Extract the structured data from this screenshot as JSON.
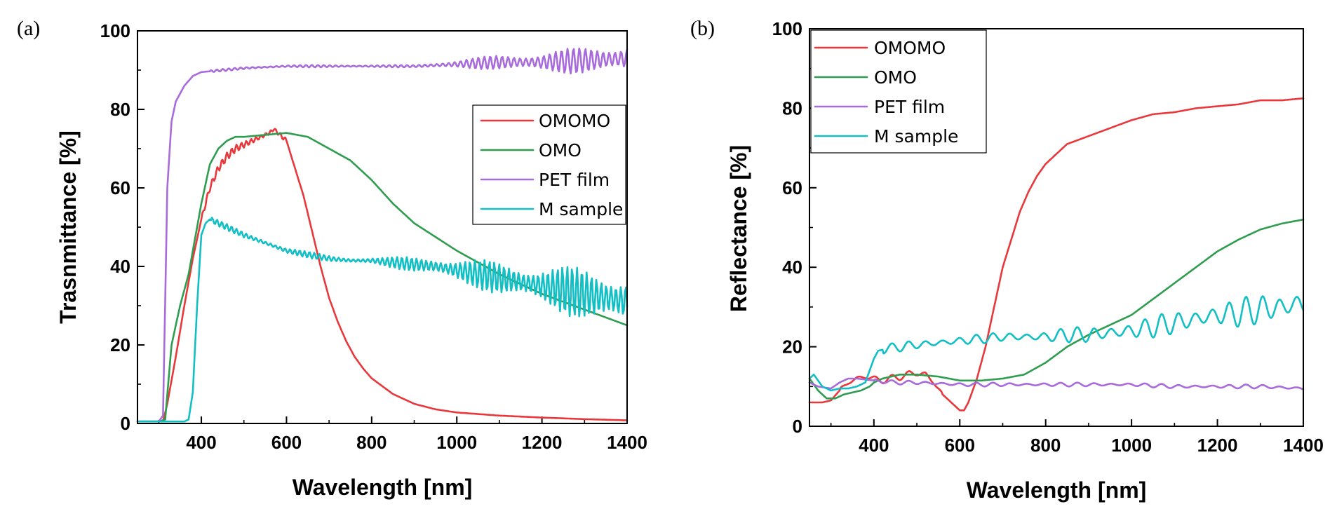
{
  "chart_data": [
    {
      "type": "line",
      "panel_label": "(a)",
      "xlabel": "Wavelength [nm]",
      "ylabel": "Trasnmittance [%]",
      "xlim": [
        250,
        1400
      ],
      "ylim": [
        0,
        100
      ],
      "xticks": [
        400,
        600,
        800,
        1000,
        1200,
        1400
      ],
      "yticks": [
        0,
        20,
        40,
        60,
        80,
        100
      ],
      "legend_position": "upper-right",
      "series": [
        {
          "name": "OMOMO",
          "color": "#e8383b",
          "x": [
            250,
            300,
            310,
            320,
            340,
            360,
            380,
            400,
            420,
            440,
            460,
            480,
            500,
            520,
            540,
            560,
            570,
            580,
            600,
            620,
            640,
            660,
            680,
            700,
            720,
            740,
            760,
            780,
            800,
            850,
            900,
            950,
            1000,
            1100,
            1200,
            1300,
            1400
          ],
          "y": [
            0.5,
            0.5,
            0.5,
            5,
            17,
            30,
            42,
            52,
            60,
            65,
            68,
            70,
            71,
            72,
            73,
            74,
            75,
            74,
            72,
            65,
            58,
            49,
            40,
            32,
            26,
            21,
            17,
            14,
            11.5,
            7.5,
            5,
            3.6,
            2.8,
            2,
            1.5,
            1.1,
            0.8
          ]
        },
        {
          "name": "OMO",
          "color": "#2e9d4f",
          "x": [
            250,
            300,
            315,
            330,
            350,
            370,
            390,
            400,
            420,
            440,
            460,
            480,
            500,
            550,
            600,
            650,
            700,
            750,
            800,
            850,
            900,
            950,
            1000,
            1050,
            1100,
            1150,
            1200,
            1250,
            1300,
            1350,
            1400
          ],
          "y": [
            0.5,
            0.5,
            1,
            20,
            30,
            38,
            50,
            56,
            66,
            70,
            72,
            73,
            73,
            73.5,
            74,
            73,
            70,
            67,
            62,
            56,
            51,
            47.5,
            44,
            41,
            38,
            35.5,
            33,
            31,
            29,
            27,
            25
          ]
        },
        {
          "name": "PET film",
          "color": "#a86bdc",
          "x": [
            250,
            300,
            310,
            320,
            330,
            340,
            360,
            380,
            400,
            450,
            500,
            600,
            700,
            800,
            900,
            1000,
            1100,
            1200,
            1300,
            1400
          ],
          "y": [
            0.5,
            0.5,
            2,
            60,
            77,
            82,
            86,
            88.5,
            89.5,
            90,
            90.5,
            91,
            91,
            91,
            91,
            91.5,
            92,
            92,
            92.5,
            93
          ]
        },
        {
          "name": "M sample",
          "color": "#12bfc4",
          "x": [
            250,
            360,
            370,
            380,
            390,
            400,
            410,
            420,
            440,
            460,
            500,
            550,
            600,
            650,
            700,
            750,
            800,
            850,
            900,
            950,
            1000,
            1100,
            1200,
            1300,
            1400
          ],
          "y": [
            0.5,
            0.5,
            1,
            8,
            30,
            48,
            51,
            52,
            51,
            50,
            48,
            46,
            44,
            43,
            42,
            41.5,
            41.5,
            41,
            40.5,
            40,
            39,
            37,
            35,
            33,
            31
          ]
        }
      ]
    },
    {
      "type": "line",
      "panel_label": "(b)",
      "xlabel": "Wavelength [nm]",
      "ylabel": "Reflectance [%]",
      "xlim": [
        250,
        1400
      ],
      "ylim": [
        0,
        100
      ],
      "xticks": [
        400,
        600,
        800,
        1000,
        1200,
        1400
      ],
      "yticks": [
        0,
        20,
        40,
        60,
        80,
        100
      ],
      "legend_position": "upper-left",
      "series": [
        {
          "name": "OMOMO",
          "color": "#e8383b",
          "x": [
            250,
            280,
            300,
            320,
            340,
            360,
            380,
            400,
            420,
            440,
            460,
            480,
            500,
            520,
            540,
            560,
            580,
            600,
            610,
            620,
            640,
            660,
            680,
            700,
            720,
            740,
            760,
            780,
            800,
            850,
            900,
            950,
            1000,
            1050,
            1100,
            1150,
            1200,
            1250,
            1300,
            1350,
            1400
          ],
          "y": [
            6,
            6,
            6.5,
            9,
            11,
            12,
            12.5,
            12,
            11.5,
            12,
            12.5,
            13,
            13.5,
            13,
            11,
            8,
            6,
            4,
            4,
            6,
            12,
            20,
            30,
            40,
            47,
            54,
            59,
            63,
            66,
            71,
            73,
            75,
            77,
            78.5,
            79,
            80,
            80.5,
            81,
            82,
            82,
            82.5
          ]
        },
        {
          "name": "OMO",
          "color": "#2e9d4f",
          "x": [
            250,
            270,
            290,
            310,
            330,
            350,
            370,
            390,
            400,
            420,
            440,
            460,
            480,
            500,
            550,
            600,
            650,
            700,
            750,
            800,
            850,
            900,
            950,
            1000,
            1050,
            1100,
            1150,
            1200,
            1250,
            1300,
            1350,
            1400
          ],
          "y": [
            12,
            9,
            7,
            7,
            8,
            8.5,
            9,
            10,
            11,
            12,
            12.5,
            13,
            13,
            13,
            12.5,
            11.5,
            11.5,
            12,
            13,
            16,
            20,
            23,
            25.5,
            28,
            32,
            36,
            40,
            44,
            47,
            49.5,
            51,
            52
          ]
        },
        {
          "name": "PET film",
          "color": "#a86bdc",
          "x": [
            250,
            270,
            300,
            320,
            340,
            360,
            400,
            450,
            500,
            600,
            700,
            800,
            900,
            1000,
            1100,
            1200,
            1300,
            1400
          ],
          "y": [
            11,
            10,
            9.5,
            11,
            12,
            12,
            11.5,
            11,
            11,
            10.5,
            10.5,
            10.5,
            10.5,
            10.5,
            10,
            10,
            10,
            9.5
          ]
        },
        {
          "name": "M sample",
          "color": "#12bfc4",
          "x": [
            250,
            260,
            280,
            300,
            320,
            340,
            360,
            380,
            390,
            400,
            410,
            430,
            460,
            500,
            550,
            600,
            650,
            700,
            750,
            800,
            850,
            900,
            950,
            1000,
            1050,
            1100,
            1150,
            1200,
            1250,
            1300,
            1350,
            1400
          ],
          "y": [
            12,
            13,
            10,
            9,
            9.5,
            9.5,
            10,
            11,
            14,
            17,
            19,
            19.5,
            20,
            20.5,
            21,
            21.5,
            22,
            22.5,
            22.5,
            22.5,
            23,
            23,
            23.5,
            24,
            25,
            26,
            27,
            28,
            28.5,
            29.5,
            30,
            31
          ]
        }
      ]
    }
  ]
}
